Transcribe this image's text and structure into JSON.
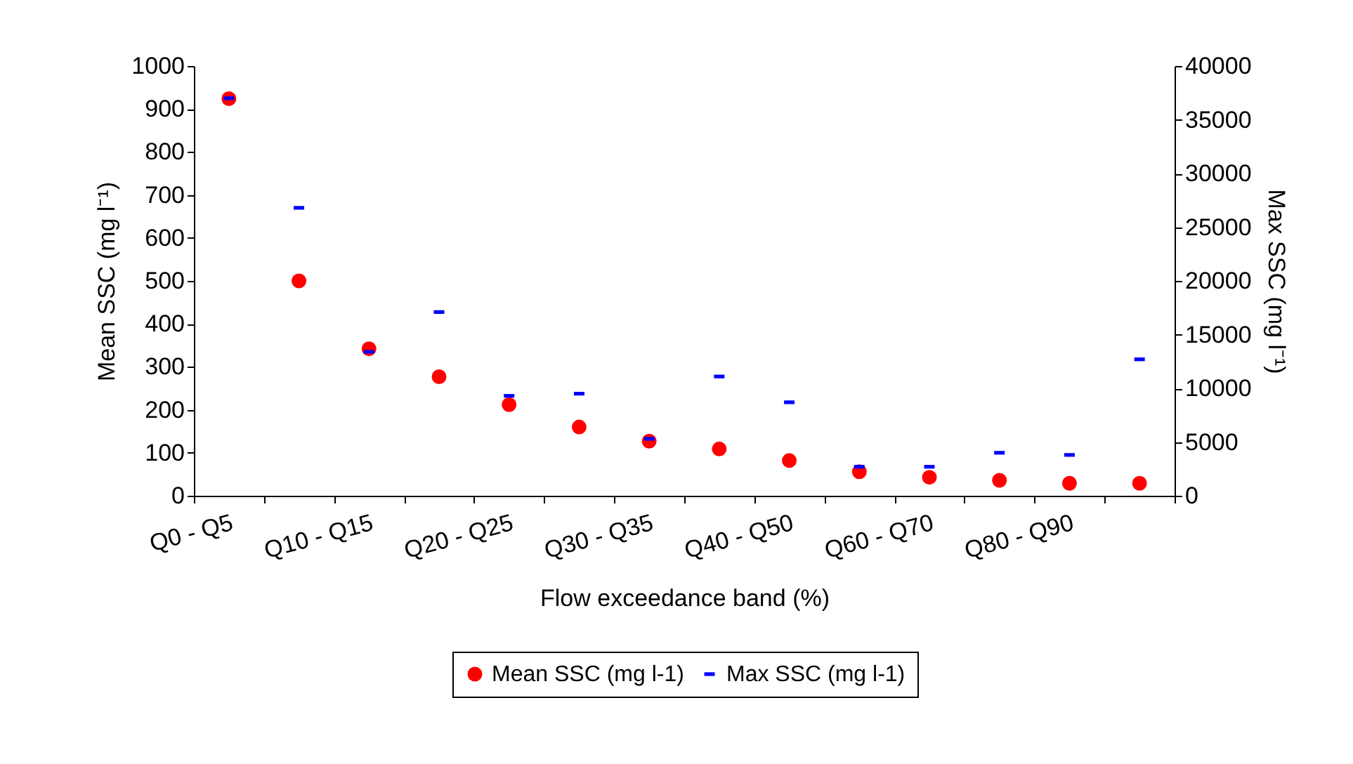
{
  "chart_data": {
    "type": "scatter",
    "xlabel": "Flow  exceedance band (%)",
    "ylabel": "Mean SSC (mg l⁻¹)",
    "y2label": "Max SSC (mg l⁻¹)",
    "categories": [
      "Q0 - Q5",
      null,
      "Q10 - Q15",
      null,
      "Q20 - Q25",
      null,
      "Q30 - Q35",
      null,
      "Q40 - Q50",
      null,
      "Q60 - Q70",
      null,
      "Q80 - Q90",
      null
    ],
    "series": [
      {
        "name": "Mean SSC (mg l-1)",
        "color": "#ff0000",
        "marker": "circle",
        "values": [
          924,
          500,
          342,
          277,
          212,
          160,
          127,
          109,
          82,
          56,
          43,
          36,
          29,
          29
        ]
      },
      {
        "name": "Max SSC (mg l-1)",
        "color": "#0000ff",
        "axis": "y2",
        "values": [
          37000,
          26800,
          13400,
          17100,
          9300,
          9500,
          5300,
          11100,
          8700,
          2700,
          2700,
          4000,
          3800,
          12700
        ]
      }
    ],
    "ylim": [
      0,
      1000
    ],
    "yticks": [
      0,
      100,
      200,
      300,
      400,
      500,
      600,
      700,
      800,
      900,
      1000
    ],
    "y2lim": [
      0,
      40000
    ],
    "y2ticks": [
      0,
      5000,
      10000,
      15000,
      20000,
      25000,
      30000,
      35000,
      40000
    ],
    "legend": "bottom"
  }
}
